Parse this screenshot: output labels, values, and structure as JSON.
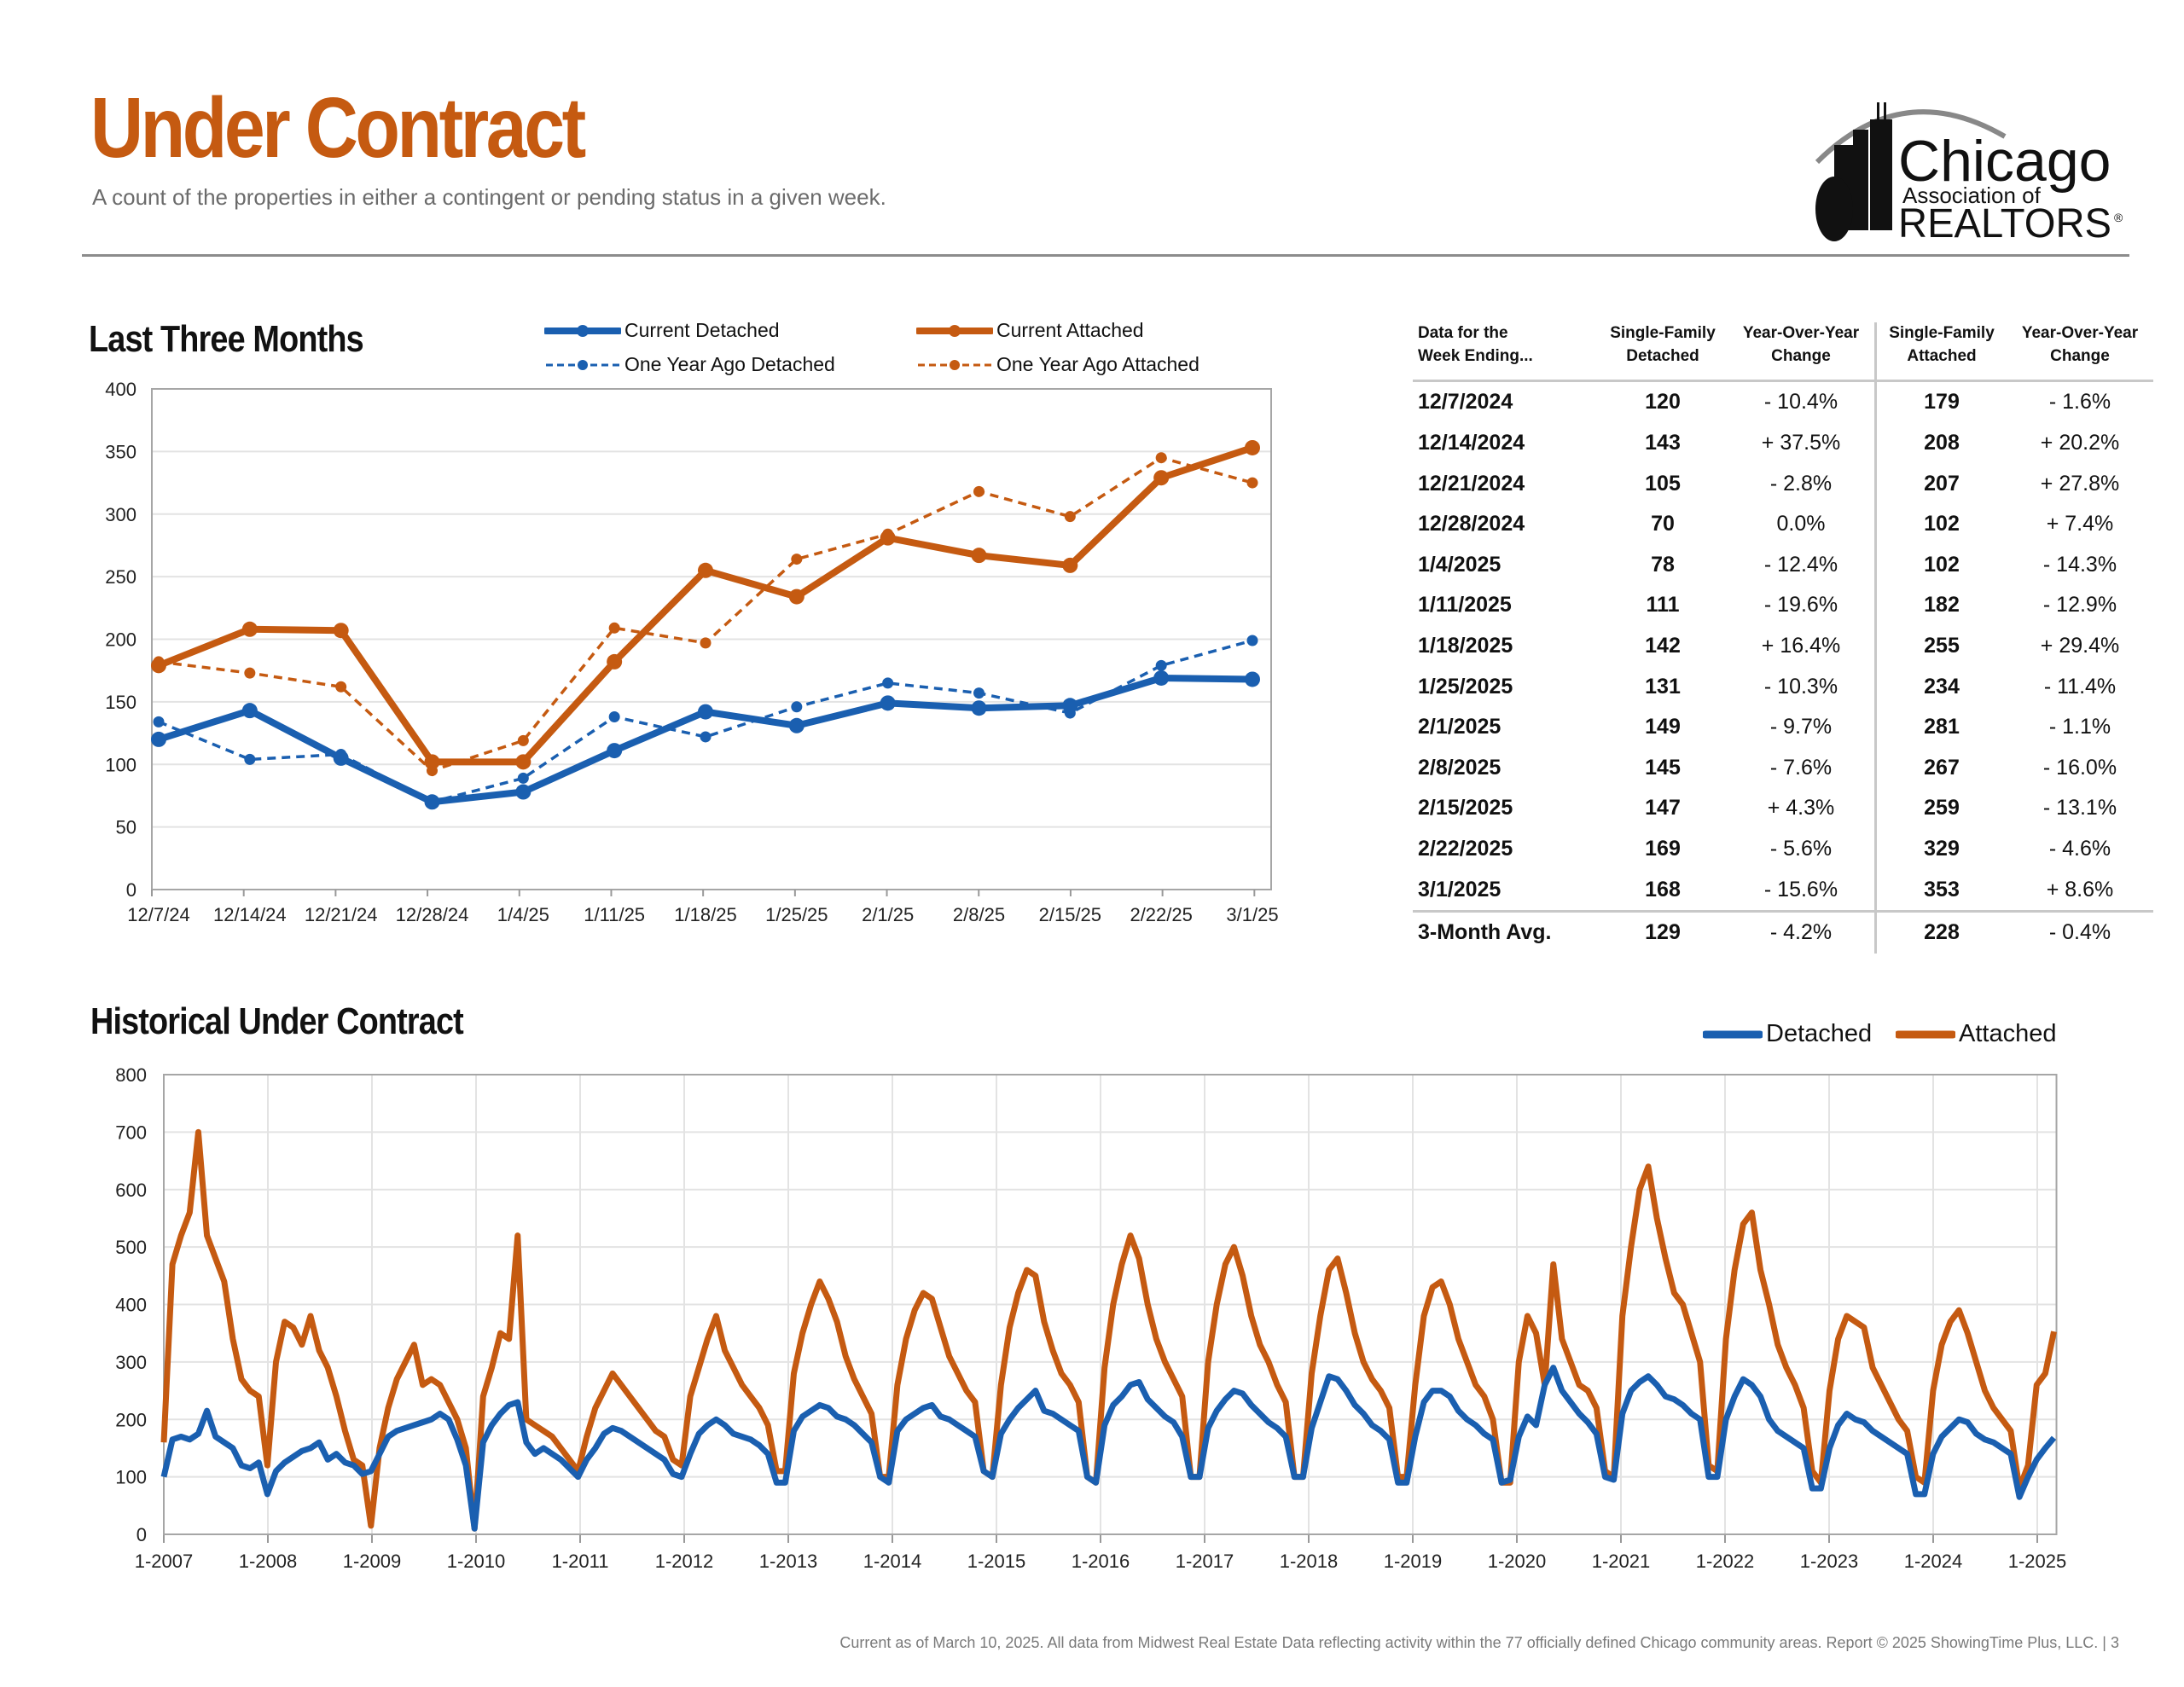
{
  "header": {
    "title": "Under Contract",
    "subtitle": "A count of the properties in either a contingent or pending status in a given week.",
    "logo": {
      "line1": "Chicago",
      "line2": "Association of",
      "line3": "REALTORS",
      "mark": "®"
    }
  },
  "colors": {
    "detached": "#1a5fb0",
    "attached": "#c55a11",
    "grid": "#e3e3e3",
    "axis": "#999999"
  },
  "chart_data": [
    {
      "type": "line",
      "title": "Last Three Months",
      "categories": [
        "12/7/24",
        "12/14/24",
        "12/21/24",
        "12/28/24",
        "1/4/25",
        "1/11/25",
        "1/18/25",
        "1/25/25",
        "2/1/25",
        "2/8/25",
        "2/15/25",
        "2/22/25",
        "3/1/25"
      ],
      "ylim": [
        0,
        400
      ],
      "yticks": [
        0,
        50,
        100,
        150,
        200,
        250,
        300,
        350,
        400
      ],
      "grid": true,
      "legend_position": "top",
      "series": [
        {
          "name": "Current Detached",
          "color": "#1a5fb0",
          "style": "solid",
          "values": [
            120,
            143,
            105,
            70,
            78,
            111,
            142,
            131,
            149,
            145,
            147,
            169,
            168
          ]
        },
        {
          "name": "Current Attached",
          "color": "#c55a11",
          "style": "solid",
          "values": [
            179,
            208,
            207,
            102,
            102,
            182,
            255,
            234,
            281,
            267,
            259,
            329,
            353
          ]
        },
        {
          "name": "One Year Ago Detached",
          "color": "#1a5fb0",
          "style": "dashed",
          "values": [
            134,
            104,
            108,
            70,
            89,
            138,
            122,
            146,
            165,
            157,
            141,
            179,
            199
          ]
        },
        {
          "name": "One Year Ago Attached",
          "color": "#c55a11",
          "style": "dashed",
          "values": [
            182,
            173,
            162,
            95,
            119,
            209,
            197,
            264,
            284,
            318,
            298,
            345,
            325
          ]
        }
      ]
    },
    {
      "type": "line",
      "title": "Historical Under Contract",
      "x_labels": [
        "1-2007",
        "1-2008",
        "1-2009",
        "1-2010",
        "1-2011",
        "1-2012",
        "1-2013",
        "1-2014",
        "1-2015",
        "1-2016",
        "1-2017",
        "1-2018",
        "1-2019",
        "1-2020",
        "1-2021",
        "1-2022",
        "1-2023",
        "1-2024",
        "1-2025"
      ],
      "x_start_year": 2007,
      "x_end_year": 2025.16,
      "ylim": [
        0,
        800
      ],
      "yticks": [
        0,
        100,
        200,
        300,
        400,
        500,
        600,
        700,
        800
      ],
      "grid": true,
      "legend_position": "top-right",
      "sampling": "monthly (approximate, read from chart)",
      "series": [
        {
          "name": "Detached",
          "color": "#1a5fb0",
          "values": [
            100,
            165,
            170,
            165,
            175,
            215,
            170,
            160,
            150,
            120,
            115,
            125,
            70,
            110,
            125,
            135,
            145,
            150,
            160,
            130,
            140,
            125,
            120,
            105,
            110,
            140,
            170,
            180,
            185,
            190,
            195,
            200,
            210,
            200,
            165,
            120,
            10,
            160,
            190,
            210,
            225,
            230,
            160,
            140,
            150,
            140,
            130,
            115,
            100,
            130,
            150,
            175,
            185,
            180,
            170,
            160,
            150,
            140,
            130,
            105,
            100,
            140,
            175,
            190,
            200,
            190,
            175,
            170,
            165,
            155,
            140,
            90,
            90,
            180,
            205,
            215,
            225,
            220,
            205,
            200,
            190,
            175,
            160,
            100,
            90,
            180,
            200,
            210,
            220,
            225,
            205,
            200,
            190,
            180,
            170,
            110,
            100,
            175,
            200,
            220,
            235,
            250,
            215,
            210,
            200,
            190,
            180,
            100,
            90,
            190,
            225,
            240,
            260,
            265,
            235,
            220,
            205,
            195,
            170,
            100,
            100,
            185,
            215,
            235,
            250,
            245,
            225,
            210,
            195,
            185,
            170,
            100,
            100,
            185,
            230,
            275,
            270,
            250,
            225,
            210,
            190,
            180,
            165,
            90,
            90,
            170,
            230,
            250,
            250,
            240,
            215,
            200,
            190,
            175,
            165,
            90,
            95,
            170,
            205,
            190,
            260,
            290,
            250,
            230,
            210,
            195,
            175,
            100,
            95,
            210,
            250,
            265,
            275,
            260,
            240,
            235,
            225,
            210,
            200,
            100,
            100,
            200,
            240,
            270,
            260,
            240,
            200,
            180,
            170,
            160,
            150,
            80,
            80,
            150,
            190,
            210,
            200,
            195,
            180,
            170,
            160,
            150,
            140,
            70,
            70,
            140,
            170,
            185,
            200,
            195,
            175,
            165,
            160,
            150,
            140,
            65,
            100,
            130,
            150,
            168
          ]
        },
        {
          "name": "Attached",
          "color": "#c55a11",
          "values": [
            160,
            470,
            520,
            560,
            700,
            520,
            480,
            440,
            340,
            270,
            250,
            240,
            120,
            300,
            370,
            360,
            330,
            380,
            320,
            290,
            240,
            180,
            130,
            120,
            15,
            150,
            220,
            270,
            300,
            330,
            260,
            270,
            260,
            230,
            200,
            150,
            10,
            240,
            290,
            350,
            340,
            520,
            200,
            190,
            180,
            170,
            150,
            130,
            110,
            170,
            220,
            250,
            280,
            260,
            240,
            220,
            200,
            180,
            170,
            130,
            120,
            240,
            290,
            340,
            380,
            320,
            290,
            260,
            240,
            220,
            190,
            110,
            110,
            280,
            350,
            400,
            440,
            410,
            370,
            310,
            270,
            240,
            210,
            100,
            100,
            260,
            340,
            390,
            420,
            410,
            360,
            310,
            280,
            250,
            230,
            110,
            100,
            260,
            360,
            420,
            460,
            450,
            370,
            320,
            280,
            260,
            230,
            100,
            90,
            290,
            400,
            470,
            520,
            480,
            400,
            340,
            300,
            270,
            240,
            100,
            100,
            300,
            400,
            470,
            500,
            450,
            380,
            330,
            300,
            260,
            230,
            100,
            100,
            280,
            380,
            460,
            480,
            420,
            350,
            300,
            270,
            250,
            220,
            100,
            100,
            260,
            380,
            430,
            440,
            400,
            340,
            300,
            260,
            240,
            200,
            90,
            90,
            300,
            380,
            350,
            260,
            470,
            340,
            300,
            260,
            250,
            220,
            110,
            100,
            380,
            500,
            600,
            640,
            550,
            480,
            420,
            400,
            350,
            300,
            120,
            110,
            340,
            460,
            540,
            560,
            460,
            400,
            330,
            290,
            260,
            220,
            110,
            90,
            250,
            340,
            380,
            370,
            360,
            290,
            260,
            230,
            200,
            180,
            100,
            90,
            250,
            330,
            370,
            390,
            350,
            300,
            250,
            220,
            200,
            180,
            80,
            120,
            260,
            280,
            353
          ]
        }
      ]
    }
  ],
  "top_chart": {
    "title": "Last Three Months",
    "legend": [
      "Current Detached",
      "Current Attached",
      "One Year Ago Detached",
      "One Year Ago Attached"
    ]
  },
  "table": {
    "headers": [
      "Data for the\nWeek Ending...",
      "Single-Family\nDetached",
      "Year-Over-Year\nChange",
      "Single-Family\nAttached",
      "Year-Over-Year\nChange"
    ],
    "rows": [
      [
        "12/7/2024",
        "120",
        "- 10.4%",
        "179",
        "- 1.6%"
      ],
      [
        "12/14/2024",
        "143",
        "+ 37.5%",
        "208",
        "+ 20.2%"
      ],
      [
        "12/21/2024",
        "105",
        "- 2.8%",
        "207",
        "+ 27.8%"
      ],
      [
        "12/28/2024",
        "70",
        "0.0%",
        "102",
        "+ 7.4%"
      ],
      [
        "1/4/2025",
        "78",
        "- 12.4%",
        "102",
        "- 14.3%"
      ],
      [
        "1/11/2025",
        "111",
        "- 19.6%",
        "182",
        "- 12.9%"
      ],
      [
        "1/18/2025",
        "142",
        "+ 16.4%",
        "255",
        "+ 29.4%"
      ],
      [
        "1/25/2025",
        "131",
        "- 10.3%",
        "234",
        "- 11.4%"
      ],
      [
        "2/1/2025",
        "149",
        "- 9.7%",
        "281",
        "- 1.1%"
      ],
      [
        "2/8/2025",
        "145",
        "- 7.6%",
        "267",
        "- 16.0%"
      ],
      [
        "2/15/2025",
        "147",
        "+ 4.3%",
        "259",
        "- 13.1%"
      ],
      [
        "2/22/2025",
        "169",
        "- 5.6%",
        "329",
        "- 4.6%"
      ],
      [
        "3/1/2025",
        "168",
        "- 15.6%",
        "353",
        "+ 8.6%"
      ]
    ],
    "avg": [
      "3-Month Avg.",
      "129",
      "- 4.2%",
      "228",
      "- 0.4%"
    ]
  },
  "historical": {
    "title": "Historical Under Contract",
    "legend": [
      "Detached",
      "Attached"
    ]
  },
  "footer": "Current as of March 10, 2025.  All data from Midwest Real Estate Data reflecting activity within the 77 officially defined Chicago community areas. Report © 2025 ShowingTime Plus, LLC.  |  3"
}
